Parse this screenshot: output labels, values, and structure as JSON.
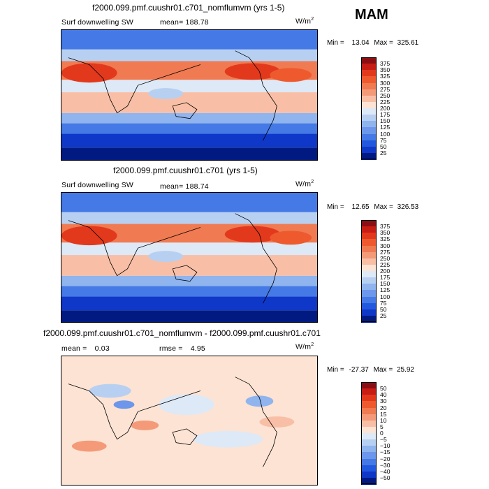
{
  "season": "MAM",
  "chart_data": [
    {
      "type": "heatmap",
      "title": "f2000.099.pmf.cuushr01.c701_nomflumvm (yrs 1-5)",
      "variable": "Surf downwelling SW",
      "stats": [
        {
          "label": "mean=",
          "value": "188.78"
        }
      ],
      "units": "W/m",
      "units_sup": "2",
      "range": {
        "min_label": "Min =",
        "min": "13.04",
        "max_label": "Max =",
        "max": "325.61"
      },
      "levels": [
        "375",
        "350",
        "325",
        "300",
        "275",
        "250",
        "225",
        "200",
        "175",
        "150",
        "125",
        "100",
        "75",
        "50",
        "25"
      ],
      "colors": [
        "#8b0f12",
        "#c81d14",
        "#e2391c",
        "#ee5a2e",
        "#f07a51",
        "#f49a78",
        "#f8bfa6",
        "#fde3d4",
        "#dde9f7",
        "#b7d0f1",
        "#8fb4ee",
        "#6c97ea",
        "#4479e6",
        "#2258dd",
        "#0f38c8",
        "#011a82"
      ]
    },
    {
      "type": "heatmap",
      "title": "f2000.099.pmf.cuushr01.c701 (yrs 1-5)",
      "variable": "Surf downwelling SW",
      "stats": [
        {
          "label": "mean=",
          "value": "188.74"
        }
      ],
      "units": "W/m",
      "units_sup": "2",
      "range": {
        "min_label": "Min =",
        "min": "12.65",
        "max_label": "Max =",
        "max": "326.53"
      },
      "levels": [
        "375",
        "350",
        "325",
        "300",
        "275",
        "250",
        "225",
        "200",
        "175",
        "150",
        "125",
        "100",
        "75",
        "50",
        "25"
      ],
      "colors": [
        "#8b0f12",
        "#c81d14",
        "#e2391c",
        "#ee5a2e",
        "#f07a51",
        "#f49a78",
        "#f8bfa6",
        "#fde3d4",
        "#dde9f7",
        "#b7d0f1",
        "#8fb4ee",
        "#6c97ea",
        "#4479e6",
        "#2258dd",
        "#0f38c8",
        "#011a82"
      ]
    },
    {
      "type": "heatmap",
      "title": "f2000.099.pmf.cuushr01.c701_nomflumvm - f2000.099.pmf.cuushr01.c701",
      "variable": "",
      "stats": [
        {
          "label": "mean =",
          "value": "0.03"
        },
        {
          "label": "rmse =",
          "value": "4.95"
        }
      ],
      "units": "W/m",
      "units_sup": "2",
      "range": {
        "min_label": "Min =",
        "min": "-27.37",
        "max_label": "Max =",
        "max": "25.92"
      },
      "levels": [
        "50",
        "40",
        "30",
        "20",
        "15",
        "10",
        "5",
        "0",
        "−5",
        "−10",
        "−15",
        "−20",
        "−30",
        "−40",
        "−50"
      ],
      "colors": [
        "#8b0f12",
        "#c81d14",
        "#e2391c",
        "#ee5a2e",
        "#f07a51",
        "#f49a78",
        "#f8bfa6",
        "#fde3d4",
        "#dde9f7",
        "#b7d0f1",
        "#8fb4ee",
        "#6c97ea",
        "#4479e6",
        "#2258dd",
        "#0f38c8",
        "#011a82"
      ]
    }
  ]
}
